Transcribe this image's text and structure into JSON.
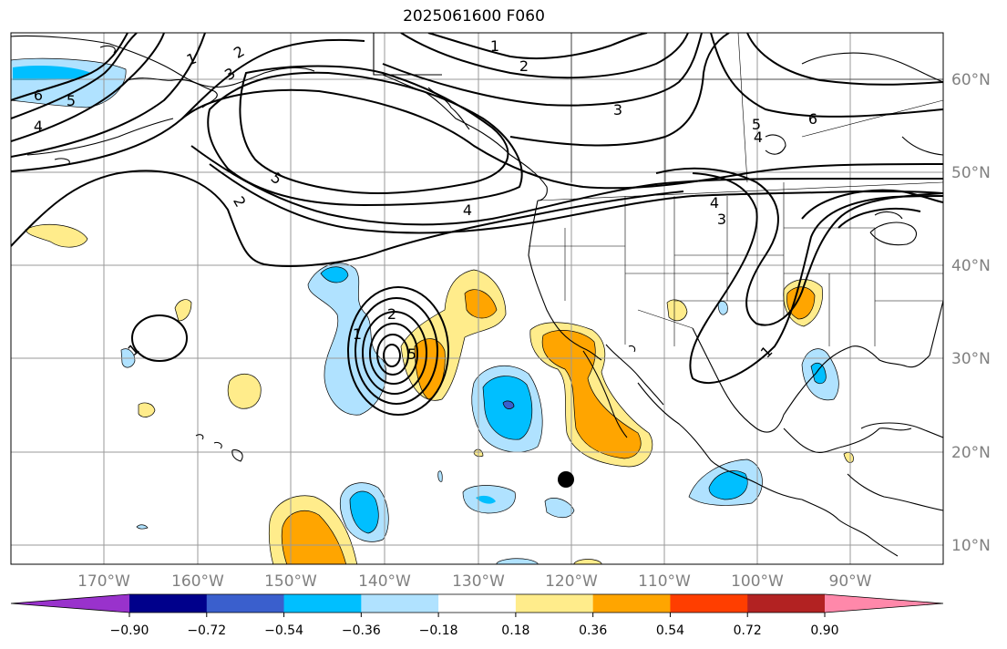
{
  "title": "2025061600 F060",
  "map": {
    "lon_range": [
      -180,
      -80
    ],
    "lat_range": [
      8,
      66
    ],
    "grid": true,
    "coastlines": true,
    "state_borders": true,
    "lon_ticks": [
      "170°W",
      "160°W",
      "150°W",
      "140°W",
      "130°W",
      "120°W",
      "110°W",
      "100°W",
      "90°W"
    ],
    "lat_ticks": [
      "60°N",
      "50°N",
      "40°N",
      "30°N",
      "20°N",
      "10°N"
    ],
    "marker": {
      "name": "black-dot",
      "lon": -120.5,
      "lat": 17.2
    }
  },
  "colorbar": {
    "colors": [
      "#9932cc",
      "#00008b",
      "#3a5fcd",
      "#00bfff",
      "#b0e2ff",
      "#ffffff",
      "#ffec8b",
      "#ffa500",
      "#ff3e00",
      "#b22222",
      "#ff88aa"
    ],
    "ticks": [
      "−0.90",
      "−0.72",
      "−0.54",
      "−0.36",
      "−0.18",
      "0.18",
      "0.36",
      "0.54",
      "0.72",
      "0.90"
    ],
    "extend": "both"
  },
  "contours": {
    "labels": [
      {
        "text": "1",
        "key": "c1a"
      },
      {
        "text": "2",
        "key": "c2a"
      },
      {
        "text": "3",
        "key": "c3a"
      },
      {
        "text": "6",
        "key": "c6a"
      },
      {
        "text": "5",
        "key": "c5a"
      },
      {
        "text": "4",
        "key": "c4a"
      },
      {
        "text": "1",
        "key": "c1b"
      },
      {
        "text": "2",
        "key": "c2b"
      },
      {
        "text": "3",
        "key": "c3b"
      },
      {
        "text": "5",
        "key": "c5b"
      },
      {
        "text": "6",
        "key": "c6b"
      },
      {
        "text": "4",
        "key": "c4b"
      },
      {
        "text": "2",
        "key": "c2c"
      },
      {
        "text": "5",
        "key": "c5c"
      },
      {
        "text": "4",
        "key": "c4c"
      },
      {
        "text": "4",
        "key": "c4d"
      },
      {
        "text": "3",
        "key": "c3d"
      },
      {
        "text": "1",
        "key": "c1d"
      },
      {
        "text": "2",
        "key": "c2d"
      },
      {
        "text": "1",
        "key": "c1e"
      },
      {
        "text": "1",
        "key": "c1f"
      },
      {
        "text": "5",
        "key": "c5d"
      }
    ]
  }
}
